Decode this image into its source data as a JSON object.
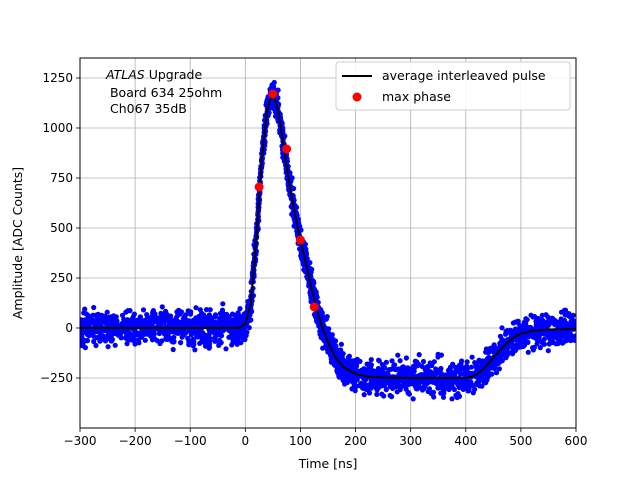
{
  "chart_data": {
    "type": "scatter",
    "xlabel": "Time [ns]",
    "ylabel": "Amplitude [ADC Counts]",
    "xlim": [
      -300,
      600
    ],
    "ylim": [
      -500,
      1350
    ],
    "xticks": [
      -300,
      -200,
      -100,
      0,
      100,
      200,
      300,
      400,
      500,
      600
    ],
    "yticks": [
      -250,
      0,
      250,
      500,
      750,
      1000,
      1250
    ],
    "xtick_labels": [
      "−300",
      "−200",
      "−100",
      "0",
      "100",
      "200",
      "300",
      "400",
      "500",
      "600"
    ],
    "ytick_labels": [
      "−250",
      "0",
      "250",
      "500",
      "750",
      "1000",
      "1250"
    ],
    "grid": true,
    "annotation": {
      "italic": "ATLAS",
      "line1_rest": " Upgrade",
      "line2": " Board 634 25ohm",
      "line3": " Ch067 35dB"
    },
    "legend": {
      "placement": "top-right",
      "entries": [
        {
          "label": "average interleaved pulse",
          "style": "line",
          "color": "#000000"
        },
        {
          "label": "max phase",
          "style": "marker",
          "color": "#ff0000"
        }
      ]
    },
    "series": [
      {
        "name": "average interleaved pulse",
        "style": "line",
        "color": "#000000",
        "x": [
          -300,
          -20,
          -10,
          0,
          10,
          20,
          30,
          40,
          50,
          60,
          70,
          80,
          90,
          100,
          110,
          120,
          130,
          140,
          150,
          160,
          170,
          180,
          200,
          220,
          250,
          300,
          350,
          400,
          410,
          420,
          430,
          440,
          450,
          460,
          470,
          480,
          490,
          500,
          520,
          550,
          600
        ],
        "y": [
          0,
          0,
          2,
          20,
          120,
          450,
          850,
          1100,
          1180,
          1080,
          900,
          720,
          570,
          440,
          320,
          200,
          90,
          0,
          -70,
          -130,
          -170,
          -200,
          -230,
          -243,
          -248,
          -250,
          -250,
          -250,
          -245,
          -232,
          -210,
          -182,
          -150,
          -118,
          -88,
          -62,
          -42,
          -28,
          -15,
          -8,
          -5
        ]
      },
      {
        "name": "max phase",
        "style": "marker",
        "color": "#ff0000",
        "x": [
          25,
          50,
          75,
          100,
          125
        ],
        "y": [
          705,
          1170,
          895,
          440,
          105
        ]
      },
      {
        "style": "scatter-band",
        "color": "#0000ff",
        "noise_spread": 70
      }
    ]
  }
}
